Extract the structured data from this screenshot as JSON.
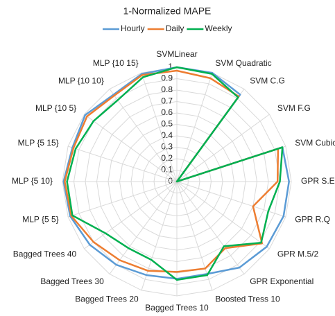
{
  "chart_data": {
    "type": "radar",
    "title": "1-Normalized MAPE",
    "categories": [
      "SVMLinear",
      "SVM Quadratic",
      "SVM C.G",
      "SVM F.G",
      "SVM Cubic",
      "GPR S.E",
      "GPR R.Q",
      "GPR M.5/2",
      "GPR Exponential",
      "Boosted Tress 10",
      "Bagged Trees 10",
      "Bagged Trees 20",
      "Bagged Trees 30",
      "Bagged Trees 40",
      "MLP {5 5}",
      "MLP {5 10}",
      "MLP {5 15}",
      "MLP {10 5}",
      "MLP {10 10}",
      "MLP {10 15}"
    ],
    "series": [
      {
        "name": "Hourly",
        "color": "#5b9bd5",
        "values": [
          1.0,
          1.0,
          0.94,
          0,
          0.97,
          0.98,
          0.98,
          0.97,
          0.93,
          0.85,
          0.85,
          0.86,
          0.9,
          0.94,
          0.98,
          0.99,
          0.96,
          0.99,
          0.94,
          0.99
        ]
      },
      {
        "name": "Daily",
        "color": "#ed7d31",
        "values": [
          0.97,
          0.95,
          0.92,
          0,
          0.93,
          0.88,
          0.7,
          0.92,
          0.72,
          0.8,
          0.79,
          0.82,
          0.85,
          0.9,
          0.97,
          0.98,
          0.95,
          0.97,
          0.93,
          0.98
        ]
      },
      {
        "name": "Weekly",
        "color": "#00b050",
        "values": [
          1.0,
          0.99,
          0.91,
          0,
          0.97,
          0.9,
          0.84,
          0.91,
          0.7,
          0.86,
          0.86,
          0.72,
          0.72,
          0.77,
          0.96,
          0.96,
          0.93,
          0.9,
          0.88,
          0.96
        ]
      }
    ],
    "ylim": [
      0,
      1
    ],
    "yticks": [
      0,
      0.1,
      0.2,
      0.3,
      0.4,
      0.5,
      0.6,
      0.7,
      0.8,
      0.9,
      1
    ],
    "grid": true,
    "legend": "top"
  }
}
